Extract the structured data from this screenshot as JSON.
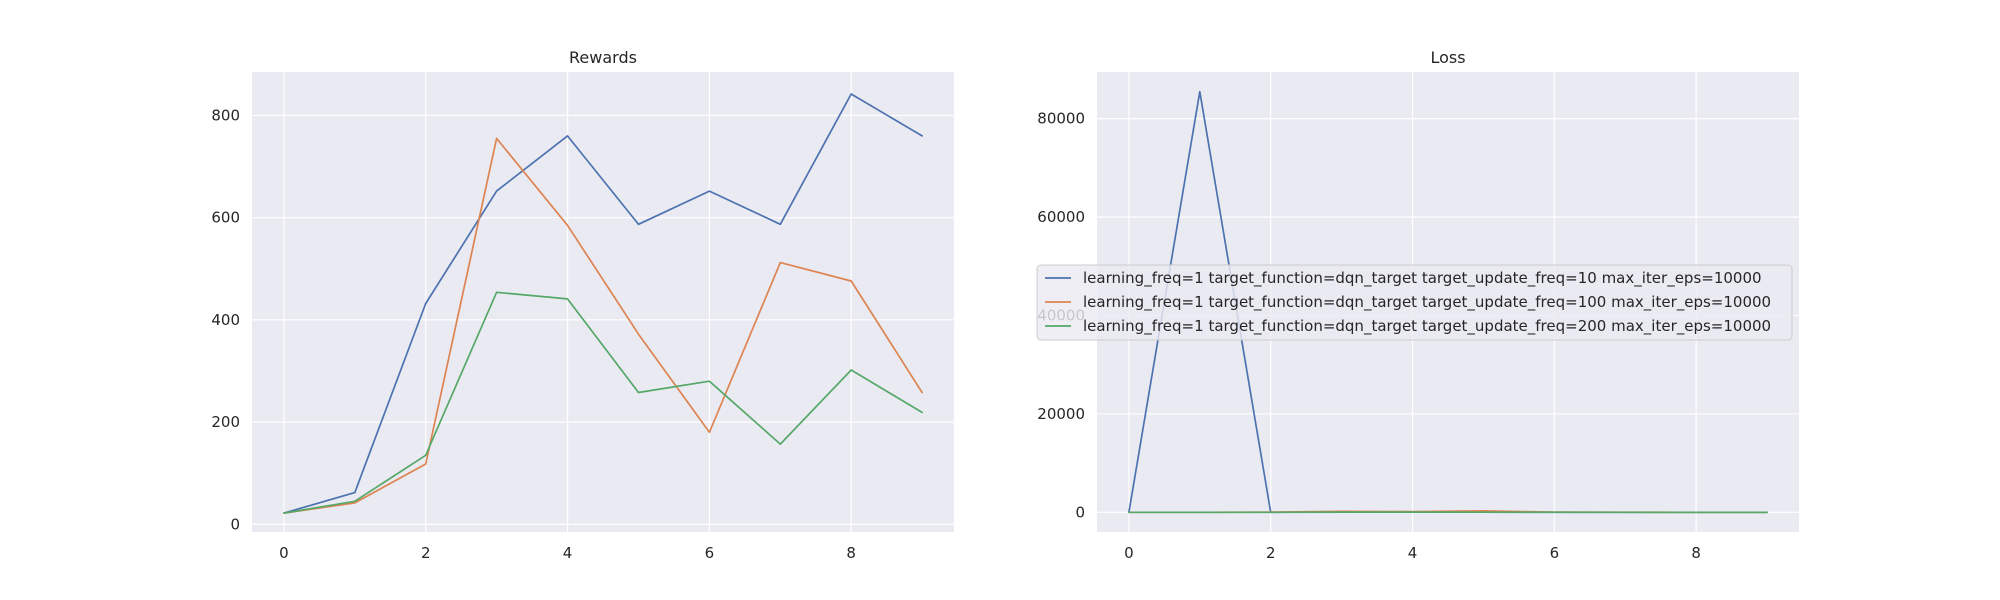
{
  "chart_data": [
    {
      "type": "line",
      "title": "Rewards",
      "xlabel": "",
      "ylabel": "",
      "x": [
        0,
        1,
        2,
        3,
        4,
        5,
        6,
        7,
        8,
        9
      ],
      "xlim": [
        -0.45,
        9.45
      ],
      "ylim": [
        -15,
        885
      ],
      "xticks": [
        0,
        2,
        4,
        6,
        8
      ],
      "yticks": [
        0,
        200,
        400,
        600,
        800
      ],
      "xtick_labels": [
        "0",
        "2",
        "4",
        "6",
        "8"
      ],
      "ytick_labels": [
        "0",
        "200",
        "400",
        "600",
        "800"
      ],
      "grid": true,
      "series": [
        {
          "name": "learning_freq=1 target_function=dqn_target target_update_freq=10 max_iter_eps=10000",
          "color": "#4c72b0",
          "values": [
            22,
            62,
            432,
            652,
            760,
            587,
            652,
            587,
            842,
            760
          ]
        },
        {
          "name": "learning_freq=1 target_function=dqn_target target_update_freq=100 max_iter_eps=10000",
          "color": "#dd8452",
          "values": [
            22,
            42,
            118,
            755,
            585,
            372,
            180,
            512,
            476,
            258
          ]
        },
        {
          "name": "learning_freq=1 target_function=dqn_target target_update_freq=200 max_iter_eps=10000",
          "color": "#55a868",
          "values": [
            22,
            45,
            135,
            454,
            441,
            258,
            280,
            157,
            302,
            219
          ]
        }
      ]
    },
    {
      "type": "line",
      "title": "Loss",
      "xlabel": "",
      "ylabel": "",
      "x": [
        0,
        1,
        2,
        3,
        4,
        5,
        6,
        7,
        8,
        9
      ],
      "xlim": [
        -0.45,
        9.45
      ],
      "ylim": [
        -4000,
        89500
      ],
      "xticks": [
        0,
        2,
        4,
        6,
        8
      ],
      "yticks": [
        0,
        20000,
        40000,
        60000,
        80000
      ],
      "xtick_labels": [
        "0",
        "2",
        "4",
        "6",
        "8"
      ],
      "ytick_labels": [
        "0",
        "20000",
        "40000",
        "60000",
        "80000"
      ],
      "grid": true,
      "legend_placement": "center",
      "series": [
        {
          "name": "learning_freq=1 target_function=dqn_target target_update_freq=10 max_iter_eps=10000",
          "color": "#4c72b0",
          "values": [
            0,
            85500,
            0,
            100,
            50,
            20,
            10,
            5,
            5,
            5
          ]
        },
        {
          "name": "learning_freq=1 target_function=dqn_target target_update_freq=100 max_iter_eps=10000",
          "color": "#dd8452",
          "values": [
            0,
            0,
            50,
            200,
            150,
            300,
            50,
            20,
            10,
            5
          ]
        },
        {
          "name": "learning_freq=1 target_function=dqn_target target_update_freq=200 max_iter_eps=10000",
          "color": "#55a868",
          "values": [
            0,
            0,
            0,
            50,
            40,
            30,
            20,
            10,
            5,
            5
          ]
        }
      ]
    }
  ]
}
